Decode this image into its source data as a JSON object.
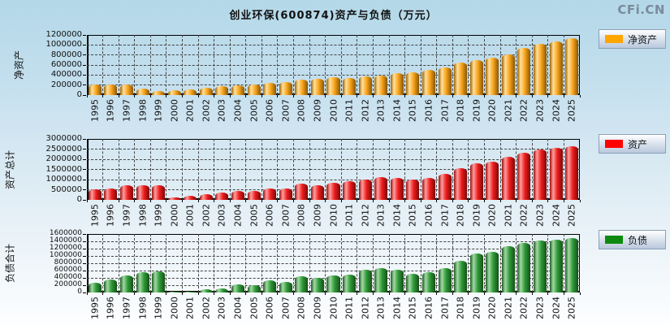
{
  "page": {
    "title": "创业环保(600874)资产与负债（万元）",
    "logo": "CFi.CN"
  },
  "chart_data": [
    {
      "type": "bar",
      "name": "net-assets",
      "title": "创业环保(600874)资产与负债（万元）",
      "ylabel": "净资产",
      "xlabel": "",
      "legend": "净资产",
      "legend_position": "right",
      "color": "#FFA500",
      "grid": true,
      "ylim": [
        0,
        1200000
      ],
      "ytick_step": 200000,
      "categories": [
        "1995",
        "1996",
        "1997",
        "1998",
        "1999",
        "2000",
        "2001",
        "2002",
        "2003",
        "2004",
        "2005",
        "2006",
        "2007",
        "2008",
        "2009",
        "2010",
        "2011",
        "2012",
        "2013",
        "2014",
        "2015",
        "2016",
        "2017",
        "2018",
        "2019",
        "2020",
        "2021",
        "2022",
        "2023",
        "2024",
        "2025"
      ],
      "values": [
        210000,
        215000,
        212000,
        128000,
        88000,
        98000,
        118000,
        150000,
        178000,
        190000,
        211000,
        238000,
        264000,
        303000,
        329000,
        350000,
        345000,
        372000,
        396000,
        434000,
        450000,
        503000,
        546000,
        653000,
        696000,
        750000,
        808000,
        943000,
        1018000,
        1071000,
        1135000
      ]
    },
    {
      "type": "bar",
      "name": "total-assets",
      "title": "",
      "ylabel": "资产总计",
      "xlabel": "",
      "legend": "资产",
      "legend_position": "right",
      "color": "#FF0000",
      "grid": true,
      "ylim": [
        0,
        3000000
      ],
      "ytick_step": 500000,
      "categories": [
        "1995",
        "1996",
        "1997",
        "1998",
        "1999",
        "2000",
        "2001",
        "2002",
        "2003",
        "2004",
        "2005",
        "2006",
        "2007",
        "2008",
        "2009",
        "2010",
        "2011",
        "2012",
        "2013",
        "2014",
        "2015",
        "2016",
        "2017",
        "2018",
        "2019",
        "2020",
        "2021",
        "2022",
        "2023",
        "2024",
        "2025"
      ],
      "values": [
        510000,
        580000,
        720000,
        735000,
        735000,
        125000,
        190000,
        280000,
        350000,
        455000,
        445000,
        560000,
        575000,
        790000,
        740000,
        845000,
        910000,
        1015000,
        1110000,
        1100000,
        1015000,
        1070000,
        1270000,
        1580000,
        1820000,
        1900000,
        2120000,
        2330000,
        2480000,
        2580000,
        2650000
      ]
    },
    {
      "type": "bar",
      "name": "total-liabilities",
      "title": "",
      "ylabel": "负债合计",
      "xlabel": "",
      "legend": "负债",
      "legend_position": "right",
      "color": "#0E8A0E",
      "grid": true,
      "ylim": [
        0,
        1600000
      ],
      "ytick_step": 200000,
      "categories": [
        "1995",
        "1996",
        "1997",
        "1998",
        "1999",
        "2000",
        "2001",
        "2002",
        "2003",
        "2004",
        "2005",
        "2006",
        "2007",
        "2008",
        "2009",
        "2010",
        "2011",
        "2012",
        "2013",
        "2014",
        "2015",
        "2016",
        "2017",
        "2018",
        "2019",
        "2020",
        "2021",
        "2022",
        "2023",
        "2024",
        "2025"
      ],
      "values": [
        265000,
        350000,
        475000,
        550000,
        585000,
        20000,
        30000,
        90000,
        110000,
        230000,
        210000,
        330000,
        290000,
        445000,
        405000,
        465000,
        500000,
        625000,
        675000,
        630000,
        520000,
        550000,
        660000,
        870000,
        1070000,
        1110000,
        1270000,
        1355000,
        1420000,
        1450000,
        1480000
      ]
    }
  ]
}
